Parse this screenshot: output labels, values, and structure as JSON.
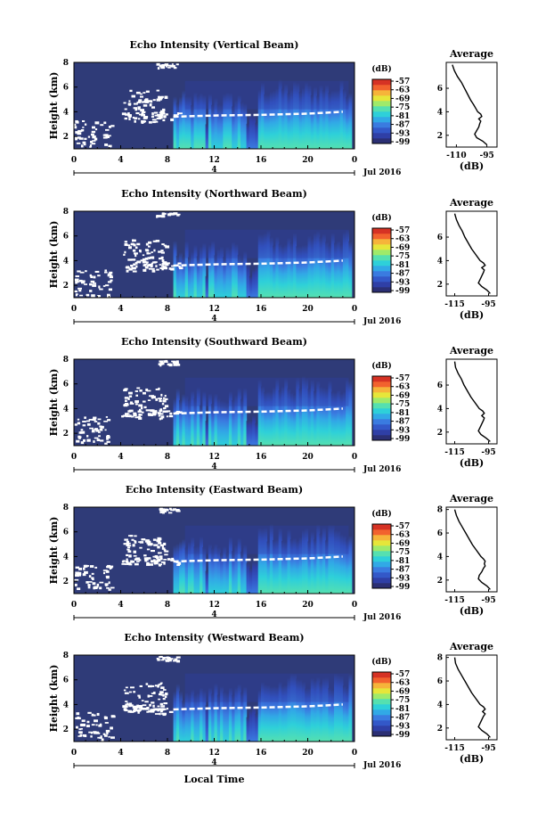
{
  "colors": {
    "background_fill": "#2f3b78",
    "speckle": "#ffffff",
    "colormap": [
      "#2b2f74",
      "#2f3fa6",
      "#3358c8",
      "#3a7be0",
      "#31a9e6",
      "#2ed0d9",
      "#55e0b0",
      "#9fea6a",
      "#e6e63a",
      "#f6b43a",
      "#f2622e",
      "#d63224"
    ]
  },
  "chart_data": [
    {
      "type": "heatmap",
      "panel": "vertical",
      "title": "Echo Intensity (Vertical Beam)",
      "ylabel": "Height (km)",
      "ylim": [
        1,
        8
      ],
      "yticks": [
        "8",
        "6",
        "4",
        "2"
      ],
      "xlim": [
        0,
        24
      ],
      "xticks": [
        "0",
        "4",
        "8",
        "12",
        "16",
        "20",
        "0"
      ],
      "date_marker": "4",
      "date_label": "Jul 2016",
      "colorbar": {
        "unit": "(dB)",
        "ticks": [
          "-57",
          "-63",
          "-69",
          "-75",
          "-81",
          "-87",
          "-93",
          "-99"
        ]
      },
      "melting_layer_km": [
        [
          8.5,
          3.6
        ],
        [
          12,
          3.7
        ],
        [
          16,
          3.75
        ],
        [
          20,
          3.85
        ],
        [
          23,
          4.0
        ]
      ],
      "profile": {
        "title": "Average",
        "xlabel": "(dB)",
        "xticks": [
          "-110",
          "-95"
        ],
        "xlim": [
          -115,
          -90
        ],
        "yticks": [
          "6",
          "4",
          "2"
        ],
        "heights_km": [
          1.2,
          1.5,
          1.8,
          2.1,
          2.4,
          2.7,
          3.0,
          3.2,
          3.4,
          3.6,
          3.8,
          4.0,
          4.3,
          4.6,
          5.0,
          5.5,
          6.0,
          6.5,
          7.0,
          7.5,
          8.0
        ],
        "values_db": [
          -95,
          -97,
          -100,
          -101,
          -100,
          -99,
          -98.5,
          -98,
          -99,
          -97.5,
          -98,
          -99.5,
          -100.5,
          -101.5,
          -103,
          -104.5,
          -106,
          -107.5,
          -109.5,
          -111,
          -112
        ]
      }
    },
    {
      "type": "heatmap",
      "panel": "northward",
      "title": "Echo Intensity (Northward Beam)",
      "ylabel": "Height (km)",
      "ylim": [
        1,
        8
      ],
      "yticks": [
        "8",
        "6",
        "4",
        "2"
      ],
      "xlim": [
        0,
        24
      ],
      "xticks": [
        "0",
        "4",
        "8",
        "12",
        "16",
        "20",
        "0"
      ],
      "date_marker": "4",
      "date_label": "Jul 2016",
      "colorbar": {
        "unit": "(dB)",
        "ticks": [
          "-57",
          "-63",
          "-69",
          "-75",
          "-81",
          "-87",
          "-93",
          "-99"
        ]
      },
      "melting_layer_km": [
        [
          8.5,
          3.6
        ],
        [
          12,
          3.7
        ],
        [
          16,
          3.75
        ],
        [
          20,
          3.85
        ],
        [
          23,
          4.0
        ]
      ],
      "profile": {
        "title": "Average",
        "xlabel": "(dB)",
        "xticks": [
          "-115",
          "-95"
        ],
        "xlim": [
          -120,
          -90
        ],
        "yticks": [
          "6",
          "4",
          "2"
        ],
        "heights_km": [
          1.2,
          1.5,
          1.8,
          2.1,
          2.4,
          2.7,
          3.0,
          3.2,
          3.4,
          3.6,
          3.8,
          4.0,
          4.3,
          4.6,
          5.0,
          5.5,
          6.0,
          6.5,
          7.0,
          7.5,
          8.0
        ],
        "values_db": [
          -94,
          -96,
          -99,
          -101,
          -100,
          -99,
          -98,
          -97.5,
          -99,
          -97,
          -98,
          -100,
          -101.5,
          -103,
          -105,
          -107,
          -109,
          -110.5,
          -112.5,
          -114,
          -115
        ]
      }
    },
    {
      "type": "heatmap",
      "panel": "southward",
      "title": "Echo Intensity (Southward Beam)",
      "ylabel": "Height (km)",
      "ylim": [
        1,
        8
      ],
      "yticks": [
        "8",
        "6",
        "4",
        "2"
      ],
      "xlim": [
        0,
        24
      ],
      "xticks": [
        "0",
        "4",
        "8",
        "12",
        "16",
        "20",
        "0"
      ],
      "date_marker": "4",
      "date_label": "Jul 2016",
      "colorbar": {
        "unit": "(dB)",
        "ticks": [
          "-57",
          "-63",
          "-69",
          "-75",
          "-81",
          "-87",
          "-93",
          "-99"
        ]
      },
      "melting_layer_km": [
        [
          8.5,
          3.6
        ],
        [
          12,
          3.7
        ],
        [
          16,
          3.75
        ],
        [
          20,
          3.85
        ],
        [
          23,
          4.0
        ]
      ],
      "profile": {
        "title": "Average",
        "xlabel": "(dB)",
        "xticks": [
          "-115",
          "-95"
        ],
        "xlim": [
          -120,
          -90
        ],
        "yticks": [
          "6",
          "4",
          "2"
        ],
        "heights_km": [
          1.2,
          1.5,
          1.8,
          2.1,
          2.4,
          2.7,
          3.0,
          3.2,
          3.4,
          3.6,
          3.8,
          4.0,
          4.3,
          4.6,
          5.0,
          5.5,
          6.0,
          6.5,
          7.0,
          7.5,
          8.0
        ],
        "values_db": [
          -94,
          -96.5,
          -99.5,
          -101,
          -100,
          -99,
          -98,
          -97.5,
          -99,
          -97.5,
          -98.5,
          -100.5,
          -102,
          -103.5,
          -105.5,
          -107.5,
          -109.5,
          -111,
          -113,
          -114.5,
          -115
        ]
      }
    },
    {
      "type": "heatmap",
      "panel": "eastward",
      "title": "Echo Intensity (Eastward Beam)",
      "ylabel": "Height (km)",
      "ylim": [
        1,
        8
      ],
      "yticks": [
        "8",
        "6",
        "4",
        "2"
      ],
      "xlim": [
        0,
        24
      ],
      "xticks": [
        "0",
        "4",
        "8",
        "12",
        "16",
        "20",
        "0"
      ],
      "date_marker": "4",
      "date_label": "Jul 2016",
      "colorbar": {
        "unit": "(dB)",
        "ticks": [
          "-57",
          "-63",
          "-69",
          "-75",
          "-81",
          "-87",
          "-93",
          "-99"
        ]
      },
      "melting_layer_km": [
        [
          8.5,
          3.6
        ],
        [
          12,
          3.7
        ],
        [
          16,
          3.75
        ],
        [
          20,
          3.85
        ],
        [
          23,
          4.0
        ]
      ],
      "profile": {
        "title": "Average",
        "xlabel": "(dB)",
        "xticks": [
          "-115",
          "-95"
        ],
        "xlim": [
          -120,
          -90
        ],
        "yticks": [
          "8",
          "6",
          "4",
          "2"
        ],
        "heights_km": [
          1.2,
          1.5,
          1.8,
          2.1,
          2.4,
          2.7,
          3.0,
          3.2,
          3.4,
          3.6,
          3.8,
          4.0,
          4.3,
          4.6,
          5.0,
          5.5,
          6.0,
          6.5,
          7.0,
          7.5,
          8.0
        ],
        "values_db": [
          -94,
          -96,
          -99,
          -101,
          -100.5,
          -99,
          -98,
          -97,
          -97.5,
          -97,
          -98,
          -99.5,
          -101,
          -102.5,
          -104.5,
          -106.5,
          -108.5,
          -110.5,
          -112.5,
          -114,
          -115
        ]
      }
    },
    {
      "type": "heatmap",
      "panel": "westward",
      "title": "Echo Intensity (Westward Beam)",
      "ylabel": "Height (km)",
      "ylim": [
        1,
        8
      ],
      "yticks": [
        "8",
        "6",
        "4",
        "2"
      ],
      "xlim": [
        0,
        24
      ],
      "xticks": [
        "0",
        "4",
        "8",
        "12",
        "16",
        "20",
        "0"
      ],
      "date_marker": "4",
      "date_label": "Jul 2016",
      "colorbar": {
        "unit": "(dB)",
        "ticks": [
          "-57",
          "-63",
          "-69",
          "-75",
          "-81",
          "-87",
          "-93",
          "-99"
        ]
      },
      "melting_layer_km": [
        [
          8.5,
          3.6
        ],
        [
          12,
          3.7
        ],
        [
          16,
          3.75
        ],
        [
          20,
          3.85
        ],
        [
          23,
          4.0
        ]
      ],
      "profile": {
        "title": "Average",
        "xlabel": "(dB)",
        "xticks": [
          "-115",
          "-95"
        ],
        "xlim": [
          -120,
          -90
        ],
        "yticks": [
          "8",
          "6",
          "4",
          "2"
        ],
        "heights_km": [
          1.2,
          1.5,
          1.8,
          2.1,
          2.4,
          2.7,
          3.0,
          3.2,
          3.4,
          3.6,
          3.8,
          4.0,
          4.3,
          4.6,
          5.0,
          5.5,
          6.0,
          6.5,
          7.0,
          7.5,
          8.0
        ],
        "values_db": [
          -94,
          -96,
          -99,
          -101,
          -100,
          -99,
          -98,
          -97,
          -98.5,
          -97,
          -98,
          -100,
          -101.5,
          -103,
          -105,
          -107,
          -109,
          -111,
          -113,
          -114.5,
          -115
        ]
      }
    }
  ],
  "x_axis_title": "Local Time"
}
